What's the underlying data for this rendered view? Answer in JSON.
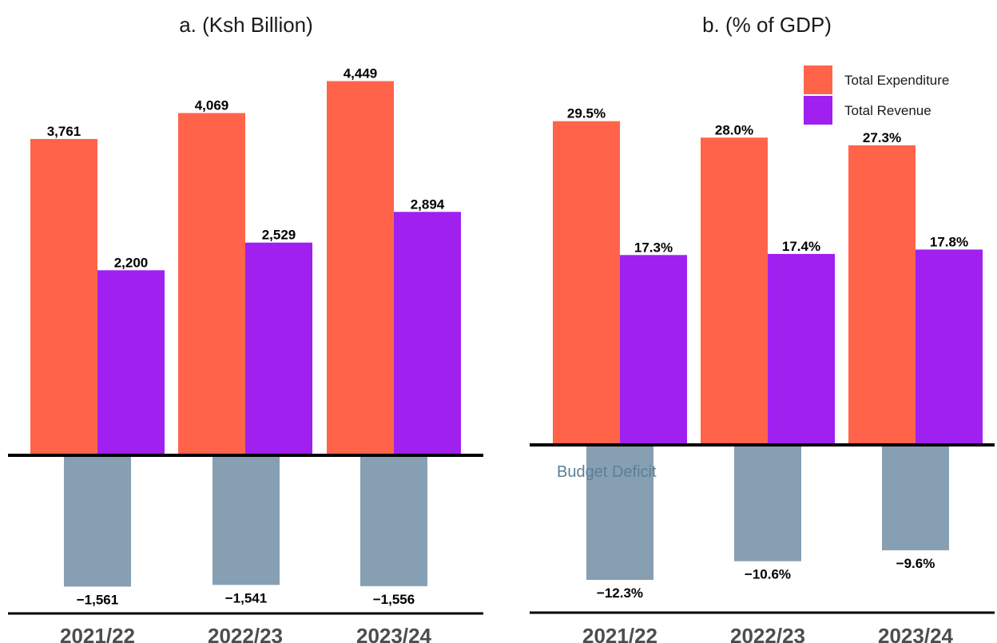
{
  "chart_data": [
    {
      "type": "bar",
      "title": "a. (Ksh Billion)",
      "categories": [
        "2021/22",
        "2022/23",
        "2023/24"
      ],
      "series": [
        {
          "name": "Total Expenditure",
          "values": [
            3761,
            4069,
            4449
          ],
          "labels": [
            "3,761",
            "4,069",
            "4,449"
          ]
        },
        {
          "name": "Total Revenue",
          "values": [
            2200,
            2529,
            2894
          ],
          "labels": [
            "2,200",
            "2,529",
            "2,894"
          ]
        },
        {
          "name": "Budget Deficit",
          "values": [
            -1561,
            -1541,
            -1556
          ],
          "labels": [
            "−1,561",
            "−1,541",
            "−1,556"
          ]
        }
      ],
      "ylim": [
        -1700,
        4700
      ]
    },
    {
      "type": "bar",
      "title": "b. (% of GDP)",
      "categories": [
        "2021/22",
        "2022/23",
        "2023/24"
      ],
      "series": [
        {
          "name": "Total Expenditure",
          "values": [
            29.5,
            28.0,
            27.3
          ],
          "labels": [
            "29.5%",
            "28.0%",
            "27.3%"
          ]
        },
        {
          "name": "Total Revenue",
          "values": [
            17.3,
            17.4,
            17.8
          ],
          "labels": [
            "17.3%",
            "17.4%",
            "17.8%"
          ]
        },
        {
          "name": "Budget Deficit",
          "values": [
            -12.3,
            -10.6,
            -9.6
          ],
          "labels": [
            "−12.3%",
            "−10.6%",
            "−9.6%"
          ]
        }
      ],
      "annotation": "Budget Deficit",
      "legend": {
        "position": "top-right",
        "entries": [
          "Total Expenditure",
          "Total Revenue"
        ]
      },
      "ylim": [
        -14.5,
        31.5
      ]
    }
  ],
  "colors": {
    "Total Expenditure": "#ff644b",
    "Total Revenue": "#a020f0",
    "Budget Deficit": "#879fb2",
    "annotation": "#5b7f99"
  }
}
